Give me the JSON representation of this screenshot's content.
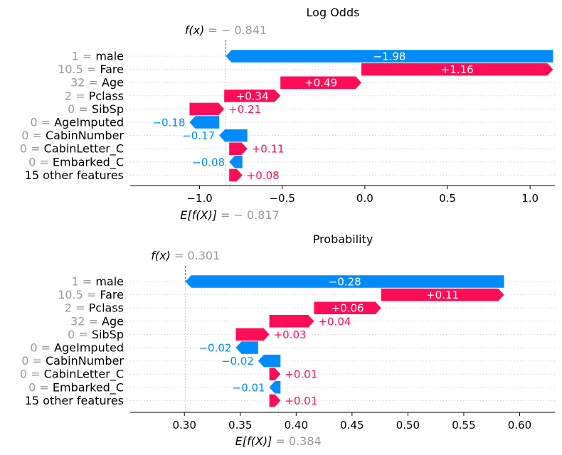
{
  "chart_data": [
    {
      "type": "waterfall",
      "title": "Log Odds",
      "fx_label": "f(x)",
      "fx_value": -0.841,
      "fx_text": "= − 0.841",
      "base_label": "E[f(X)]",
      "base_value": -0.817,
      "base_text": "= − 0.817",
      "xlim": [
        -1.42,
        1.15
      ],
      "xticks": [
        -1.0,
        -0.5,
        0.0,
        0.5,
        1.0
      ],
      "xtick_labels": [
        "−1.0",
        "−0.5",
        "0.0",
        "0.5",
        "1.0"
      ],
      "features": [
        {
          "value": "1",
          "name": "male",
          "shap": -1.98,
          "label": "−1.98"
        },
        {
          "value": "10.5",
          "name": "Fare",
          "shap": 1.16,
          "label": "+1.16"
        },
        {
          "value": "32",
          "name": "Age",
          "shap": 0.49,
          "label": "+0.49"
        },
        {
          "value": "2",
          "name": "Pclass",
          "shap": 0.34,
          "label": "+0.34"
        },
        {
          "value": "0",
          "name": "SibSp",
          "shap": 0.21,
          "label": "+0.21"
        },
        {
          "value": "0",
          "name": "AgeImputed",
          "shap": -0.18,
          "label": "−0.18"
        },
        {
          "value": "0",
          "name": "CabinNumber",
          "shap": -0.17,
          "label": "−0.17"
        },
        {
          "value": "0",
          "name": "CabinLetter_C",
          "shap": 0.11,
          "label": "+0.11"
        },
        {
          "value": "0",
          "name": "Embarked_C",
          "shap": -0.08,
          "label": "−0.08"
        },
        {
          "value": "",
          "name": "15 other features",
          "shap": 0.08,
          "label": "+0.08"
        }
      ]
    },
    {
      "type": "waterfall",
      "title": "Probability",
      "fx_label": "f(x)",
      "fx_value": 0.301,
      "fx_text": "= 0.301",
      "base_label": "E[f(X)]",
      "base_value": 0.384,
      "base_text": "= 0.384",
      "xlim": [
        0.2515,
        0.6315
      ],
      "xticks": [
        0.3,
        0.35,
        0.4,
        0.45,
        0.5,
        0.55,
        0.6
      ],
      "xtick_labels": [
        "0.30",
        "0.35",
        "0.40",
        "0.45",
        "0.50",
        "0.55",
        "0.60"
      ],
      "features": [
        {
          "value": "1",
          "name": "male",
          "shap": -0.285,
          "label": "−0.28"
        },
        {
          "value": "10.5",
          "name": "Fare",
          "shap": 0.11,
          "label": "+0.11"
        },
        {
          "value": "2",
          "name": "Pclass",
          "shap": 0.06,
          "label": "+0.06"
        },
        {
          "value": "32",
          "name": "Age",
          "shap": 0.04,
          "label": "+0.04"
        },
        {
          "value": "0",
          "name": "SibSp",
          "shap": 0.03,
          "label": "+0.03"
        },
        {
          "value": "0",
          "name": "AgeImputed",
          "shap": -0.02,
          "label": "−0.02"
        },
        {
          "value": "0",
          "name": "CabinNumber",
          "shap": -0.02,
          "label": "−0.02"
        },
        {
          "value": "0",
          "name": "CabinLetter_C",
          "shap": 0.01,
          "label": "+0.01"
        },
        {
          "value": "0",
          "name": "Embarked_C",
          "shap": -0.01,
          "label": "−0.01"
        },
        {
          "value": "",
          "name": "15 other features",
          "shap": 0.01,
          "label": "+0.01"
        }
      ]
    }
  ],
  "colors": {
    "positive": "#ff0d57",
    "negative": "#008bfb",
    "muted_text": "#999999",
    "grid": "#cccccc"
  }
}
